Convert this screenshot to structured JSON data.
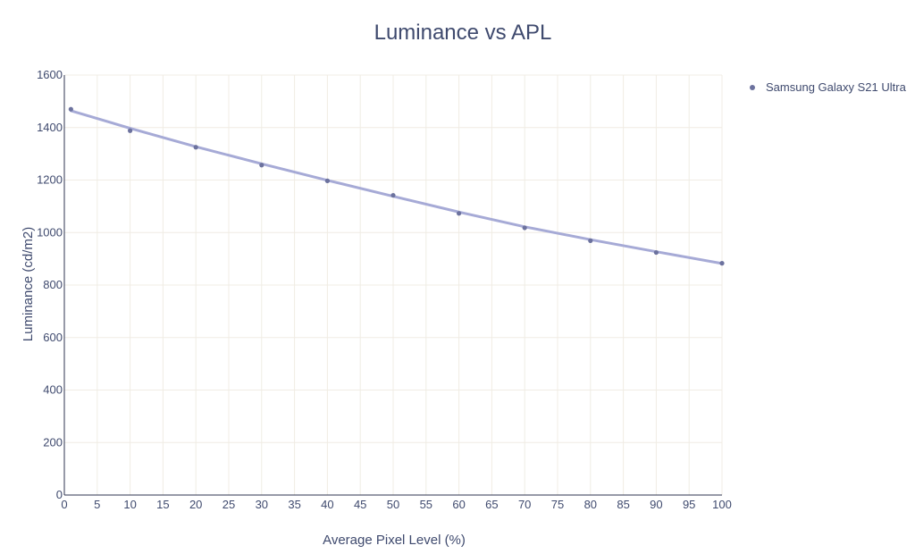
{
  "colors": {
    "fit_line": "#a6aad6",
    "marker": "#6c729e",
    "text": "#3f4a6e"
  },
  "chart_data": {
    "type": "scatter",
    "title": "Luminance vs APL",
    "xlabel": "Average Pixel Level (%)",
    "ylabel": "Luminance (cd/m2)",
    "xlim": [
      0,
      100
    ],
    "ylim": [
      0,
      1600
    ],
    "xticks": [
      0,
      5,
      10,
      15,
      20,
      25,
      30,
      35,
      40,
      45,
      50,
      55,
      60,
      65,
      70,
      75,
      80,
      85,
      90,
      95,
      100
    ],
    "yticks": [
      0,
      200,
      400,
      600,
      800,
      1000,
      1200,
      1400,
      1600
    ],
    "grid": true,
    "legend_position": "top-right",
    "series": [
      {
        "name": "Samsung Galaxy S21 Ultra",
        "mode": "markers",
        "x": [
          1,
          10,
          20,
          30,
          40,
          50,
          60,
          70,
          80,
          90,
          100
        ],
        "y": [
          1470,
          1388,
          1325,
          1257,
          1197,
          1142,
          1073,
          1018,
          969,
          924,
          883
        ]
      }
    ],
    "trendline": {
      "x": [
        1,
        10,
        20,
        30,
        40,
        50,
        60,
        70,
        80,
        90,
        100
      ],
      "y": [
        1464,
        1397,
        1327,
        1262,
        1199,
        1138,
        1078,
        1022,
        973,
        927,
        882
      ]
    }
  }
}
